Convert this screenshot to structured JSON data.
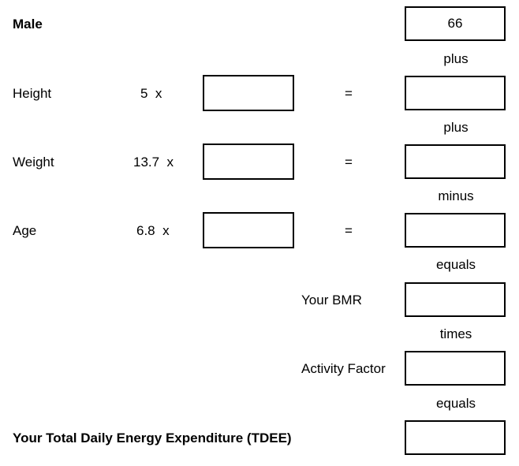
{
  "header": {
    "sex_label": "Male",
    "base_value": "66"
  },
  "rows": [
    {
      "label": "Height",
      "multiplier": "5",
      "op": "x",
      "equals": "=",
      "input_value": "",
      "result_value": ""
    },
    {
      "label": "Weight",
      "multiplier": "13.7",
      "op": "x",
      "equals": "=",
      "input_value": "",
      "result_value": ""
    },
    {
      "label": "Age",
      "multiplier": "6.8",
      "op": "x",
      "equals": "=",
      "input_value": "",
      "result_value": ""
    }
  ],
  "connectors": [
    "plus",
    "plus",
    "minus",
    "equals",
    "times",
    "equals"
  ],
  "bmr": {
    "label": "Your BMR",
    "value": ""
  },
  "activity": {
    "label": "Activity Factor",
    "value": ""
  },
  "tdee": {
    "label": "Your Total Daily Energy Expenditure (TDEE)",
    "value": ""
  }
}
